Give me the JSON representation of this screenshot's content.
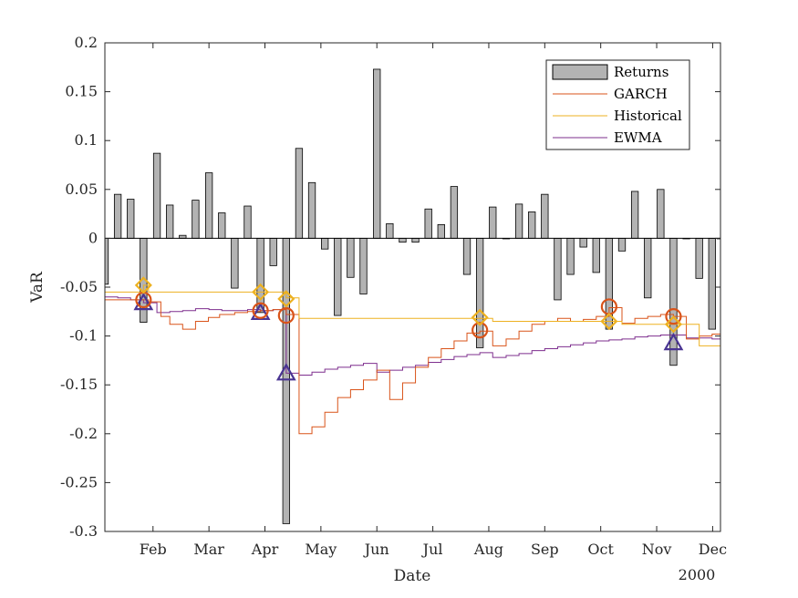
{
  "chart_data": {
    "type": "bar",
    "xlabel": "Date",
    "ylabel": "VaR",
    "x_secondary_label": "2000",
    "xlim": [
      0,
      11
    ],
    "ylim": [
      -0.3,
      0.2
    ],
    "yticks": [
      -0.3,
      -0.25,
      -0.2,
      -0.15,
      -0.1,
      -0.05,
      0,
      0.05,
      0.1,
      0.15,
      0.2
    ],
    "ytick_labels": [
      "-0.3",
      "-0.25",
      "-0.2",
      "-0.15",
      "-0.1",
      "-0.05",
      "0",
      "0.05",
      "0.1",
      "0.15",
      "0.2"
    ],
    "xticks": [
      0.86,
      1.86,
      2.86,
      3.86,
      4.86,
      5.86,
      6.86,
      7.86,
      8.86,
      9.86,
      10.86
    ],
    "xtick_labels": [
      "Feb",
      "Mar",
      "Apr",
      "May",
      "Jun",
      "Jul",
      "Aug",
      "Sep",
      "Oct",
      "Nov",
      "Dec"
    ],
    "grid": false,
    "legend_placement": "top-right",
    "colors": {
      "returns_fill": "#b3b3b3",
      "returns_edge": "#000000",
      "garch": "#d95319",
      "historical": "#edb120",
      "ewma": "#7e2f8e",
      "ewma_marker": "#4a3593"
    },
    "legend": [
      {
        "label": "Returns",
        "key": "returns"
      },
      {
        "label": "GARCH",
        "key": "garch"
      },
      {
        "label": "Historical",
        "key": "historical"
      },
      {
        "label": "EWMA",
        "key": "ewma"
      }
    ],
    "series": [
      {
        "name": "Returns",
        "type": "bar",
        "x": [
          0.0,
          0.23,
          0.46,
          0.69,
          0.93,
          1.16,
          1.39,
          1.62,
          1.86,
          2.09,
          2.32,
          2.55,
          2.78,
          3.01,
          3.24,
          3.47,
          3.7,
          3.93,
          4.16,
          4.39,
          4.62,
          4.86,
          5.09,
          5.32,
          5.55,
          5.78,
          6.01,
          6.24,
          6.47,
          6.7,
          6.93,
          7.17,
          7.4,
          7.63,
          7.86,
          8.09,
          8.32,
          8.55,
          8.78,
          9.01,
          9.24,
          9.47,
          9.7,
          9.93,
          10.16,
          10.39,
          10.62,
          10.85,
          11.0
        ],
        "values": [
          -0.047,
          0.045,
          0.04,
          -0.086,
          0.087,
          0.034,
          0.003,
          0.039,
          0.067,
          0.026,
          -0.051,
          0.033,
          -0.076,
          -0.028,
          -0.292,
          0.092,
          0.057,
          -0.011,
          -0.079,
          -0.04,
          -0.057,
          0.173,
          0.015,
          -0.004,
          -0.004,
          0.03,
          0.014,
          0.053,
          -0.037,
          -0.112,
          0.032,
          0.0,
          0.035,
          0.027,
          0.045,
          -0.063,
          -0.037,
          -0.009,
          -0.035,
          -0.093,
          -0.013,
          0.048,
          -0.061,
          0.05,
          -0.13,
          0.0,
          -0.041,
          -0.093,
          0.0
        ]
      },
      {
        "name": "GARCH",
        "type": "line",
        "x": [
          0,
          0.3,
          0.69,
          0.78,
          1.0,
          1.16,
          1.39,
          1.62,
          1.85,
          2.05,
          2.32,
          2.55,
          2.78,
          3.0,
          3.24,
          3.47,
          3.7,
          3.93,
          4.16,
          4.39,
          4.62,
          4.86,
          5.09,
          5.32,
          5.55,
          5.78,
          6.01,
          6.24,
          6.47,
          6.7,
          6.93,
          7.17,
          7.4,
          7.63,
          7.86,
          8.09,
          8.32,
          8.55,
          8.78,
          9.01,
          9.24,
          9.47,
          9.7,
          9.93,
          10.16,
          10.39,
          10.62,
          10.85,
          11.0
        ],
        "values": [
          -0.063,
          -0.063,
          -0.063,
          -0.065,
          -0.08,
          -0.088,
          -0.093,
          -0.085,
          -0.081,
          -0.078,
          -0.076,
          -0.075,
          -0.074,
          -0.073,
          -0.078,
          -0.2,
          -0.193,
          -0.178,
          -0.163,
          -0.155,
          -0.145,
          -0.135,
          -0.165,
          -0.148,
          -0.132,
          -0.122,
          -0.113,
          -0.105,
          -0.097,
          -0.095,
          -0.11,
          -0.103,
          -0.095,
          -0.088,
          -0.085,
          -0.082,
          -0.085,
          -0.083,
          -0.08,
          -0.071,
          -0.087,
          -0.082,
          -0.08,
          -0.078,
          -0.08,
          -0.103,
          -0.1,
          -0.098,
          -0.097
        ]
      },
      {
        "name": "Historical",
        "type": "line",
        "x": [
          0,
          0.69,
          0.78,
          2.78,
          3.24,
          3.47,
          6.7,
          6.93,
          9.24,
          10.39,
          10.62,
          11.0
        ],
        "values": [
          -0.055,
          -0.048,
          -0.055,
          -0.055,
          -0.061,
          -0.082,
          -0.082,
          -0.085,
          -0.088,
          -0.088,
          -0.11,
          -0.112
        ]
      },
      {
        "name": "EWMA",
        "type": "line",
        "x": [
          0,
          0.23,
          0.46,
          0.69,
          0.93,
          1.16,
          1.39,
          1.62,
          1.86,
          2.09,
          2.32,
          2.55,
          2.78,
          3.01,
          3.24,
          3.47,
          3.7,
          3.93,
          4.16,
          4.39,
          4.62,
          4.86,
          5.09,
          5.32,
          5.55,
          5.78,
          6.01,
          6.24,
          6.47,
          6.7,
          6.93,
          7.17,
          7.4,
          7.63,
          7.86,
          8.09,
          8.32,
          8.55,
          8.78,
          9.01,
          9.24,
          9.47,
          9.7,
          9.93,
          10.16,
          10.39,
          10.62,
          10.85,
          11.0
        ],
        "values": [
          -0.06,
          -0.061,
          -0.063,
          -0.066,
          -0.076,
          -0.075,
          -0.074,
          -0.072,
          -0.073,
          -0.074,
          -0.074,
          -0.073,
          -0.074,
          -0.073,
          -0.138,
          -0.14,
          -0.137,
          -0.134,
          -0.132,
          -0.13,
          -0.128,
          -0.137,
          -0.135,
          -0.132,
          -0.13,
          -0.127,
          -0.124,
          -0.121,
          -0.119,
          -0.117,
          -0.122,
          -0.12,
          -0.118,
          -0.115,
          -0.113,
          -0.111,
          -0.109,
          -0.107,
          -0.105,
          -0.104,
          -0.103,
          -0.101,
          -0.1,
          -0.099,
          -0.099,
          -0.102,
          -0.102,
          -0.103,
          -0.103
        ]
      }
    ],
    "exceedances": {
      "garch": {
        "x": [
          0.69,
          2.78,
          3.24,
          6.7,
          9.01,
          10.16
        ],
        "values": [
          -0.063,
          -0.074,
          -0.079,
          -0.094,
          -0.07,
          -0.08
        ]
      },
      "historical": {
        "x": [
          0.69,
          2.78,
          3.24,
          6.7,
          9.01,
          10.16
        ],
        "values": [
          -0.048,
          -0.055,
          -0.062,
          -0.081,
          -0.085,
          -0.088
        ]
      },
      "ewma": {
        "x": [
          0.69,
          2.78,
          3.24,
          10.16
        ],
        "values": [
          -0.066,
          -0.076,
          -0.138,
          -0.107
        ]
      }
    }
  }
}
